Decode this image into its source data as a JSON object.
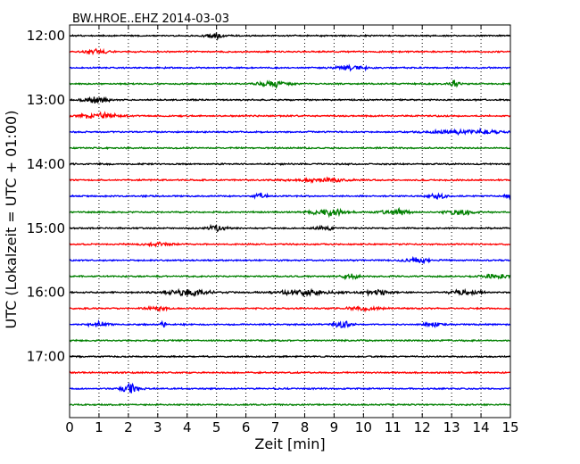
{
  "chart_data": {
    "type": "line",
    "title": "BW.HROE..EHZ 2014-03-03",
    "xlabel": "Zeit  [min]",
    "ylabel": "UTC (Lokalzeit = UTC + 01:00)",
    "xlim": [
      0,
      15
    ],
    "xticks": [
      "0",
      "1",
      "2",
      "3",
      "4",
      "5",
      "6",
      "7",
      "8",
      "9",
      "10",
      "11",
      "12",
      "13",
      "14",
      "15"
    ],
    "yticks": [
      "12:00",
      "13:00",
      "14:00",
      "15:00",
      "16:00",
      "17:00"
    ],
    "grid": "vertical dotted",
    "series_colors": [
      "#000000",
      "#ff0000",
      "#0000ff",
      "#008000"
    ],
    "traces": [
      {
        "label": "12:00",
        "color": "#000000",
        "events": [
          [
            4.9,
            3.5,
            0.3
          ]
        ]
      },
      {
        "label": "12:15",
        "color": "#ff0000",
        "events": [
          [
            0.9,
            3.0,
            0.4
          ]
        ]
      },
      {
        "label": "12:30",
        "color": "#0000ff",
        "events": [
          [
            9.6,
            3.0,
            0.5
          ]
        ]
      },
      {
        "label": "12:45",
        "color": "#008000",
        "events": [
          [
            6.9,
            3.5,
            0.5
          ],
          [
            13.1,
            5.0,
            0.15
          ]
        ]
      },
      {
        "label": "13:00",
        "color": "#000000",
        "events": [
          [
            0.9,
            4.0,
            0.4
          ]
        ]
      },
      {
        "label": "13:15",
        "color": "#ff0000",
        "events": [
          [
            1.0,
            3.5,
            0.6
          ]
        ]
      },
      {
        "label": "13:30",
        "color": "#0000ff",
        "events": [
          [
            13.5,
            2.5,
            1.2
          ]
        ]
      },
      {
        "label": "13:45",
        "color": "#008000",
        "events": []
      },
      {
        "label": "14:00",
        "color": "#000000",
        "events": []
      },
      {
        "label": "14:15",
        "color": "#ff0000",
        "events": [
          [
            8.5,
            2.0,
            1.0
          ]
        ]
      },
      {
        "label": "14:30",
        "color": "#0000ff",
        "events": [
          [
            6.5,
            4.0,
            0.2
          ],
          [
            12.5,
            3.0,
            0.3
          ],
          [
            15.0,
            3.0,
            0.2
          ]
        ]
      },
      {
        "label": "14:45",
        "color": "#008000",
        "events": [
          [
            8.8,
            4.0,
            0.6
          ],
          [
            11.1,
            4.5,
            0.4
          ],
          [
            13.3,
            3.0,
            0.5
          ]
        ]
      },
      {
        "label": "15:00",
        "color": "#000000",
        "events": [
          [
            5.0,
            3.5,
            0.3
          ],
          [
            8.7,
            3.0,
            0.3
          ]
        ]
      },
      {
        "label": "15:15",
        "color": "#ff0000",
        "events": [
          [
            3.0,
            2.0,
            0.5
          ]
        ]
      },
      {
        "label": "15:30",
        "color": "#0000ff",
        "events": [
          [
            11.8,
            2.5,
            0.4
          ]
        ]
      },
      {
        "label": "15:45",
        "color": "#008000",
        "events": [
          [
            9.6,
            3.0,
            0.3
          ],
          [
            14.5,
            2.5,
            0.5
          ]
        ]
      },
      {
        "label": "16:00",
        "color": "#000000",
        "events": [
          [
            4.0,
            3.5,
            0.8
          ],
          [
            8.0,
            3.0,
            1.0
          ],
          [
            10.5,
            3.0,
            0.5
          ],
          [
            13.5,
            3.5,
            0.5
          ]
        ]
      },
      {
        "label": "16:15",
        "color": "#ff0000",
        "events": [
          [
            3.0,
            2.5,
            0.4
          ],
          [
            10.0,
            2.5,
            0.5
          ]
        ]
      },
      {
        "label": "16:30",
        "color": "#0000ff",
        "events": [
          [
            1.0,
            4.0,
            0.3
          ],
          [
            3.2,
            3.5,
            0.1
          ],
          [
            9.3,
            4.0,
            0.3
          ],
          [
            12.4,
            3.0,
            0.3
          ]
        ]
      },
      {
        "label": "16:45",
        "color": "#008000",
        "events": []
      },
      {
        "label": "17:00",
        "color": "#000000",
        "events": []
      },
      {
        "label": "17:15",
        "color": "#ff0000",
        "events": []
      },
      {
        "label": "17:30",
        "color": "#0000ff",
        "events": [
          [
            2.1,
            6.0,
            0.3
          ]
        ]
      },
      {
        "label": "17:45",
        "color": "#008000",
        "events": []
      }
    ]
  }
}
